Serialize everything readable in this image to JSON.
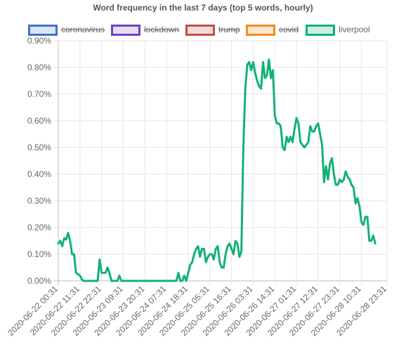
{
  "chart_data": {
    "type": "line",
    "title": "Word frequency in the last 7 days (top 5 words, hourly)",
    "xlabel": "",
    "ylabel": "",
    "ylim": [
      0,
      0.9
    ],
    "y_ticks": [
      "0.00%",
      "0.10%",
      "0.20%",
      "0.30%",
      "0.40%",
      "0.50%",
      "0.60%",
      "0.70%",
      "0.80%",
      "0.90%"
    ],
    "x_tick_labels": [
      "2020-06-22 00:31",
      "2020-06-22 11:31",
      "2020-06-22 22:31",
      "2020-06-23 09:31",
      "2020-06-23 20:31",
      "2020-06-24 07:31",
      "2020-06-24 18:31",
      "2020-06-25 05:31",
      "2020-06-25 16:31",
      "2020-06-26 03:31",
      "2020-06-26 14:31",
      "2020-06-27 01:31",
      "2020-06-27 12:31",
      "2020-06-27 23:31",
      "2020-06-28 10:31",
      "2020-06-28 23:31"
    ],
    "x_tick_hours": [
      0,
      11,
      22,
      33,
      44,
      55,
      66,
      77,
      88,
      99,
      110,
      121,
      132,
      143,
      154,
      167
    ],
    "grid": true,
    "legend_position": "top",
    "series": [
      {
        "name": "coronavirus",
        "color": "#4472c4",
        "fill": "#dbe4f5",
        "hidden": true,
        "values": []
      },
      {
        "name": "lockdown",
        "color": "#6f42c1",
        "fill": "#e5def3",
        "hidden": true,
        "values": []
      },
      {
        "name": "trump",
        "color": "#c0504d",
        "fill": "#f2dcdb",
        "hidden": true,
        "values": []
      },
      {
        "name": "covid",
        "color": "#f08c1e",
        "fill": "#fce8d2",
        "hidden": true,
        "values": []
      },
      {
        "name": "liverpool",
        "color": "#13b176",
        "fill": "#d0efe3",
        "hidden": false,
        "points": [
          [
            0,
            0.14
          ],
          [
            1,
            0.15
          ],
          [
            2,
            0.13
          ],
          [
            3,
            0.16
          ],
          [
            4,
            0.155
          ],
          [
            5,
            0.18
          ],
          [
            6,
            0.15
          ],
          [
            7,
            0.1
          ],
          [
            8,
            0.1
          ],
          [
            9,
            0.03
          ],
          [
            10,
            0.025
          ],
          [
            11,
            0.02
          ],
          [
            12,
            0.005
          ],
          [
            13,
            0
          ],
          [
            14,
            0
          ],
          [
            15,
            0
          ],
          [
            16,
            0
          ],
          [
            17,
            0
          ],
          [
            18,
            0
          ],
          [
            19,
            0
          ],
          [
            20,
            0
          ],
          [
            21,
            0.08
          ],
          [
            22,
            0.03
          ],
          [
            23,
            0.03
          ],
          [
            24,
            0.03
          ],
          [
            25,
            0.05
          ],
          [
            26,
            0.03
          ],
          [
            27,
            0
          ],
          [
            28,
            0
          ],
          [
            29,
            0
          ],
          [
            30,
            0
          ],
          [
            31,
            0.02
          ],
          [
            32,
            0
          ],
          [
            33,
            0
          ],
          [
            34,
            0
          ],
          [
            35,
            0
          ],
          [
            36,
            0
          ],
          [
            37,
            0
          ],
          [
            38,
            0
          ],
          [
            39,
            0
          ],
          [
            40,
            0
          ],
          [
            41,
            0
          ],
          [
            42,
            0
          ],
          [
            43,
            0
          ],
          [
            44,
            0
          ],
          [
            45,
            0
          ],
          [
            46,
            0
          ],
          [
            47,
            0
          ],
          [
            48,
            0
          ],
          [
            49,
            0
          ],
          [
            50,
            0
          ],
          [
            51,
            0
          ],
          [
            52,
            0
          ],
          [
            53,
            0
          ],
          [
            54,
            0
          ],
          [
            55,
            0
          ],
          [
            56,
            0
          ],
          [
            57,
            0
          ],
          [
            58,
            0
          ],
          [
            59,
            0
          ],
          [
            60,
            0
          ],
          [
            61,
            0.03
          ],
          [
            62,
            0
          ],
          [
            63,
            0
          ],
          [
            64,
            0.02
          ],
          [
            65,
            0
          ],
          [
            66,
            0.03
          ],
          [
            67,
            0.06
          ],
          [
            68,
            0.07
          ],
          [
            69,
            0.1
          ],
          [
            70,
            0.12
          ],
          [
            71,
            0.13
          ],
          [
            72,
            0.09
          ],
          [
            73,
            0.12
          ],
          [
            74,
            0.12
          ],
          [
            75,
            0.07
          ],
          [
            76,
            0.09
          ],
          [
            77,
            0.1
          ],
          [
            78,
            0.1
          ],
          [
            79,
            0.08
          ],
          [
            80,
            0.12
          ],
          [
            81,
            0.13
          ],
          [
            82,
            0.07
          ],
          [
            83,
            0.05
          ],
          [
            84,
            0.05
          ],
          [
            85,
            0.1
          ],
          [
            86,
            0.13
          ],
          [
            87,
            0.14
          ],
          [
            88,
            0.12
          ],
          [
            89,
            0.1
          ],
          [
            90,
            0.15
          ],
          [
            91,
            0.14
          ],
          [
            92,
            0.09
          ],
          [
            93,
            0.11
          ],
          [
            94,
            0.5
          ],
          [
            95,
            0.72
          ],
          [
            96,
            0.81
          ],
          [
            97,
            0.82
          ],
          [
            98,
            0.79
          ],
          [
            99,
            0.82
          ],
          [
            100,
            0.78
          ],
          [
            101,
            0.75
          ],
          [
            102,
            0.73
          ],
          [
            103,
            0.72
          ],
          [
            104,
            0.82
          ],
          [
            105,
            0.76
          ],
          [
            106,
            0.77
          ],
          [
            107,
            0.83
          ],
          [
            108,
            0.76
          ],
          [
            109,
            0.79
          ],
          [
            110,
            0.62
          ],
          [
            111,
            0.59
          ],
          [
            112,
            0.59
          ],
          [
            113,
            0.58
          ],
          [
            114,
            0.5
          ],
          [
            115,
            0.49
          ],
          [
            116,
            0.54
          ],
          [
            117,
            0.52
          ],
          [
            118,
            0.54
          ],
          [
            119,
            0.52
          ],
          [
            120,
            0.57
          ],
          [
            121,
            0.61
          ],
          [
            122,
            0.59
          ],
          [
            123,
            0.52
          ],
          [
            124,
            0.51
          ],
          [
            125,
            0.5
          ],
          [
            126,
            0.51
          ],
          [
            127,
            0.52
          ],
          [
            128,
            0.58
          ],
          [
            129,
            0.56
          ],
          [
            130,
            0.56
          ],
          [
            131,
            0.58
          ],
          [
            132,
            0.59
          ],
          [
            133,
            0.55
          ],
          [
            134,
            0.51
          ],
          [
            135,
            0.37
          ],
          [
            136,
            0.43
          ],
          [
            137,
            0.38
          ],
          [
            138,
            0.44
          ],
          [
            139,
            0.46
          ],
          [
            140,
            0.4
          ],
          [
            141,
            0.36
          ],
          [
            142,
            0.36
          ],
          [
            143,
            0.38
          ],
          [
            144,
            0.37
          ],
          [
            145,
            0.38
          ],
          [
            146,
            0.41
          ],
          [
            147,
            0.39
          ],
          [
            148,
            0.38
          ],
          [
            149,
            0.36
          ],
          [
            150,
            0.35
          ],
          [
            151,
            0.29
          ],
          [
            152,
            0.31
          ],
          [
            153,
            0.28
          ],
          [
            154,
            0.22
          ],
          [
            155,
            0.21
          ],
          [
            156,
            0.24
          ],
          [
            157,
            0.24
          ],
          [
            158,
            0.15
          ],
          [
            159,
            0.15
          ],
          [
            160,
            0.17
          ],
          [
            161,
            0.14
          ]
        ]
      }
    ]
  }
}
